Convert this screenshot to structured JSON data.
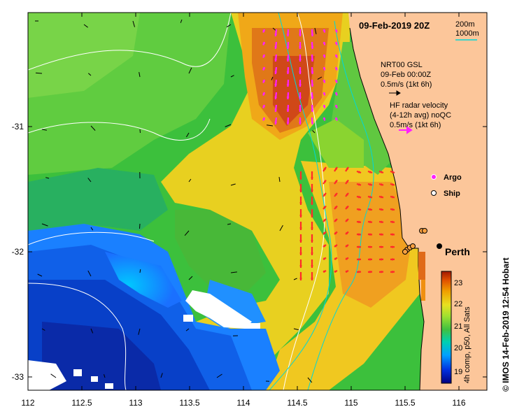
{
  "map": {
    "date_label": "09-Feb-2019 20Z",
    "isobaths": {
      "shallow": "200m",
      "deep": "1000m"
    },
    "x_ticks": [
      "112",
      "112.5",
      "113",
      "113.5",
      "114",
      "114.5",
      "115",
      "115.5",
      "116"
    ],
    "y_ticks": [
      "-31",
      "-32",
      "-33"
    ],
    "x_range_lon": [
      112,
      116.3
    ],
    "y_range_lat": [
      -33.1,
      -30.1
    ]
  },
  "legend": {
    "nrt_line1": "NRT00 GSL",
    "nrt_line2": "09-Feb 00:00Z",
    "nrt_scale": "0.5m/s (1kt 6h)",
    "hf_line1": "HF radar velocity",
    "hf_line2": "(4-12h avg) noQC",
    "hf_scale": "0.5m/s (1kt 6h)",
    "argo": "Argo",
    "ship": "Ship",
    "city": "Perth"
  },
  "colorbar": {
    "ticks": [
      "23",
      "22",
      "21",
      "20",
      "19"
    ],
    "label": "4h comp, p50, All Sats",
    "colors": [
      "#000080",
      "#0040e0",
      "#00a0ff",
      "#00d0c0",
      "#40c040",
      "#90e040",
      "#e0e020",
      "#f0b000",
      "#e06000",
      "#b02000"
    ]
  },
  "credit": "© IMOS 14-Feb-2019 12:54 Hobart",
  "colors": {
    "land": "#fcc69a",
    "hf_arrow": "#ff2a2a",
    "hf_arrow_north": "#ff20ff",
    "contour_200": "#00d8d8",
    "contour_1000": "#ffffff"
  }
}
